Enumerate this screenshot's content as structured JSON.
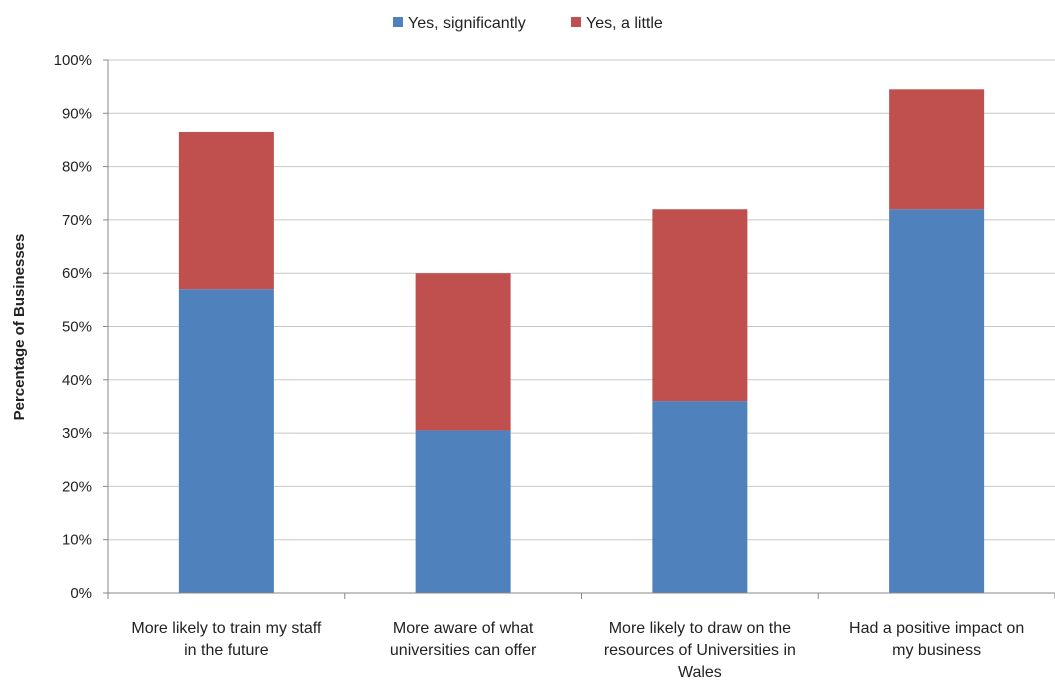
{
  "chart_data": {
    "type": "bar",
    "stacked": true,
    "categories": [
      "More likely to train my staff in the future",
      "More aware of what universities can offer",
      "More likely to draw on the resources of Universities in Wales",
      "Had a positive impact on my business"
    ],
    "category_lines": [
      [
        "More likely to train my staff",
        "in the future"
      ],
      [
        "More aware of what",
        "universities can offer"
      ],
      [
        "More likely to draw on the",
        "resources of Universities in",
        "Wales"
      ],
      [
        "Had a positive impact on",
        "my business"
      ]
    ],
    "series": [
      {
        "name": "Yes, significantly",
        "color": "#4F81BD",
        "values": [
          57,
          30.5,
          36,
          72
        ]
      },
      {
        "name": "Yes, a little",
        "color": "#C0504D",
        "values": [
          29.5,
          29.5,
          36,
          22.5
        ]
      }
    ],
    "ylabel": "Percentage of Businesses",
    "xlabel": "",
    "ylim": [
      0,
      100
    ],
    "yticks": [
      0,
      10,
      20,
      30,
      40,
      50,
      60,
      70,
      80,
      90,
      100
    ],
    "ytick_labels": [
      "0%",
      "10%",
      "20%",
      "30%",
      "40%",
      "50%",
      "60%",
      "70%",
      "80%",
      "90%",
      "100%"
    ],
    "grid": true,
    "legend_position": "top-center"
  }
}
